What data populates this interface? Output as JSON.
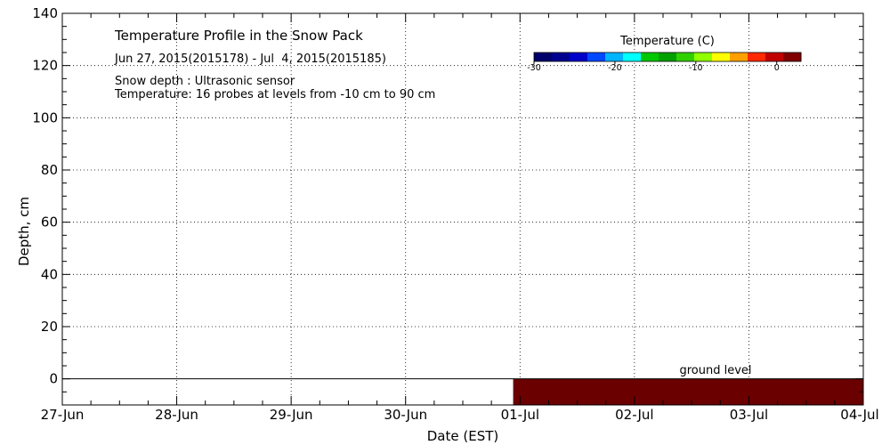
{
  "chart_data": {
    "type": "heatmap",
    "title": "Temperature Profile in the Snow Pack",
    "subtitle": "Jun 27, 2015(2015178) - Jul  4, 2015(2015185)",
    "notes": [
      "Snow depth : Ultrasonic sensor",
      "Temperature: 16 probes at levels from -10 cm to 90 cm"
    ],
    "xlabel": "Date (EST)",
    "ylabel": "Depth, cm",
    "x_tick_labels": [
      "27-Jun",
      "28-Jun",
      "29-Jun",
      "30-Jun",
      "01-Jul",
      "02-Jul",
      "03-Jul",
      "04-Jul"
    ],
    "xlim_days": [
      0,
      7
    ],
    "ylim": [
      -10,
      140
    ],
    "y_ticks": [
      0,
      20,
      40,
      60,
      80,
      100,
      120,
      140
    ],
    "grid": true,
    "ground_level": 0,
    "ground_level_label": "ground level",
    "below_ground_block": {
      "x_start_days": 3.94,
      "x_end_days": 7,
      "y_top": 0,
      "y_bottom": -10,
      "color": "#6b0000"
    },
    "colorbar": {
      "title": "Temperature (C)",
      "min": -30,
      "max": 3,
      "tick_values": [
        -30,
        -20,
        -10,
        0
      ],
      "tick_labels": [
        "-30",
        "-20",
        "-10",
        "0"
      ],
      "colors": [
        "#00006b",
        "#000090",
        "#0000c8",
        "#0048ff",
        "#00b4ff",
        "#00ffff",
        "#00c800",
        "#00a000",
        "#30d000",
        "#90ff00",
        "#ffff00",
        "#ffa000",
        "#ff2800",
        "#c00000",
        "#800000"
      ]
    }
  }
}
